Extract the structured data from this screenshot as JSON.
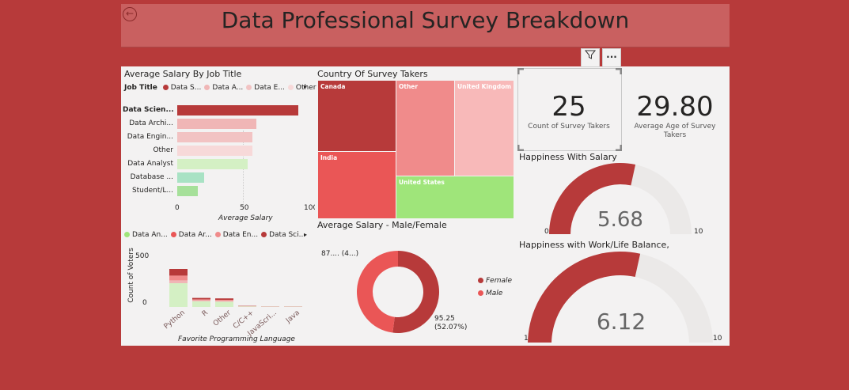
{
  "header": {
    "title": "Data Professional Survey Breakdown"
  },
  "toolbar": {
    "filter_icon": "funnel-icon",
    "more_icon": "ellipsis-icon",
    "more_label": "···"
  },
  "bar_chart": {
    "title": "Average Salary By Job Title",
    "legend_label": "Job Title",
    "legend": [
      {
        "label": "Data S...",
        "color": "#b73a3a"
      },
      {
        "label": "Data A...",
        "color": "#f0b6b6"
      },
      {
        "label": "Data E...",
        "color": "#f2c3c3"
      },
      {
        "label": "Other",
        "color": "#f7d9d9"
      }
    ],
    "xlabel": "Average Salary",
    "ticks": [
      "0",
      "50",
      "100"
    ]
  },
  "treemap": {
    "title": "Country Of Survey Takers",
    "cells": [
      {
        "label": "Canada",
        "color": "#b73a3a"
      },
      {
        "label": "Other",
        "color": "#f08b8b"
      },
      {
        "label": "United Kingdom",
        "color": "#f8b9b9"
      },
      {
        "label": "India",
        "color": "#ea5656"
      },
      {
        "label": "United States",
        "color": "#9fe57a"
      }
    ]
  },
  "cards": {
    "count": {
      "value": "25",
      "label": "Count of Survey Takers"
    },
    "age": {
      "value": "29.80",
      "label": "Average Age of Survey Takers"
    }
  },
  "gauge_salary": {
    "title": "Happiness With Salary",
    "value": "5.68",
    "min": "0",
    "max": "10"
  },
  "gauge_balance": {
    "title": "Happiness with Work/Life Balance,",
    "value": "6.12",
    "min": "1",
    "max": "10"
  },
  "stacked_chart": {
    "legend": [
      {
        "label": "Data An...",
        "color": "#9fe57a"
      },
      {
        "label": "Data Ar...",
        "color": "#ea5656"
      },
      {
        "label": "Data En...",
        "color": "#f08b8b"
      },
      {
        "label": "Data Sci...",
        "color": "#b73a3a"
      }
    ],
    "ylabel": "Count of Voters",
    "xlabel": "Favorite Programming Language",
    "yticks": [
      "500",
      "0"
    ]
  },
  "donut": {
    "title": "Average Salary - Male/Female",
    "label_top": "87.... (4...)",
    "label_bottom_1": "95.25",
    "label_bottom_2": "(52.07%)",
    "legend": [
      {
        "label": "Female",
        "color": "#b73a3a"
      },
      {
        "label": "Male",
        "color": "#ea5656"
      }
    ]
  },
  "chart_data": [
    {
      "type": "bar",
      "title": "Average Salary By Job Title",
      "categories": [
        "Data Scien...",
        "Data Archi...",
        "Data Engin...",
        "Other",
        "Data Analyst",
        "Database ...",
        "Student/L..."
      ],
      "values": [
        93,
        61,
        58,
        58,
        54,
        21,
        16
      ],
      "xlabel": "Average Salary",
      "xlim": [
        0,
        100
      ]
    },
    {
      "type": "bar",
      "stacked": true,
      "categories": [
        "Python",
        "R",
        "Other",
        "C/C++",
        "JavaScri...",
        "Java"
      ],
      "series": [
        {
          "name": "Data An...",
          "values": [
            250,
            60,
            55,
            5,
            3,
            3
          ]
        },
        {
          "name": "Data Ar...",
          "values": [
            30,
            10,
            10,
            2,
            1,
            1
          ]
        },
        {
          "name": "Data En...",
          "values": [
            50,
            10,
            10,
            2,
            1,
            1
          ]
        },
        {
          "name": "Data Sci...",
          "values": [
            70,
            15,
            15,
            3,
            1,
            1
          ]
        }
      ],
      "xlabel": "Favorite Programming Language",
      "ylabel": "Count of Voters",
      "ylim": [
        0,
        600
      ]
    },
    {
      "type": "pie",
      "title": "Average Salary - Male/Female",
      "categories": [
        "Female",
        "Male"
      ],
      "values": [
        95.25,
        87.68
      ]
    }
  ]
}
